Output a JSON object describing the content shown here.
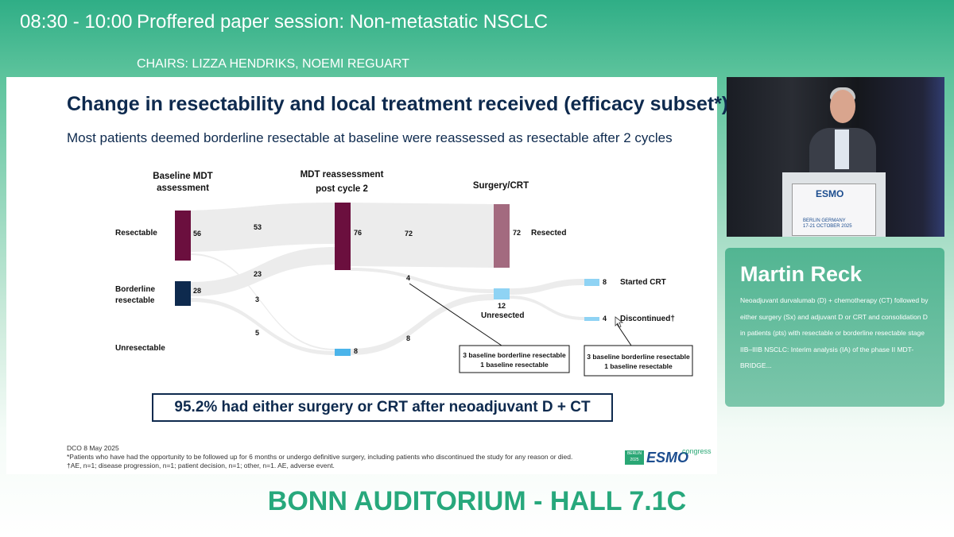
{
  "header": {
    "time": "08:30 - 10:00",
    "session": "Proffered paper session: Non-metastatic NSCLC",
    "chairs": "CHAIRS: LIZZA HENDRIKS, NOEMI REGUART"
  },
  "slide": {
    "title": "Change in resectability and local treatment received (efficacy subset*)",
    "subtitle": "Most patients deemed borderline resectable at baseline were reassessed as resectable after 2 cycles",
    "columns": {
      "baseline": [
        "Baseline MDT",
        "assessment"
      ],
      "reassessment": [
        "MDT reassessment",
        "post cycle 2"
      ],
      "surgery": "Surgery/CRT"
    },
    "row_labels": {
      "resectable": "Resectable",
      "borderline": [
        "Borderline",
        "resectable"
      ],
      "unresectable": "Unresectable"
    },
    "nodes": {
      "base_resectable": "56",
      "base_borderline": "28",
      "mdt_resectable": "76",
      "mdt_unresectable": "8",
      "unresected": "12",
      "resected": "72",
      "started_crt": "8",
      "discontinued": "4"
    },
    "outcome_labels": {
      "resected": "Resected",
      "unresected": "Unresected",
      "started_crt": "Started CRT",
      "discontinued": "Discontinued†"
    },
    "flows": {
      "r_to_r": "53",
      "b_to_r": "23",
      "r_to_u": "3",
      "b_to_u": "5",
      "to_resected": "72",
      "r_to_unres": "4",
      "u_to_unres": "8"
    },
    "boxes": {
      "box1": [
        "3 baseline borderline resectable",
        "1 baseline resectable"
      ],
      "box2": [
        "3 baseline borderline resectable",
        "1 baseline resectable"
      ]
    },
    "callout": "95.2% had either surgery or CRT after neoadjuvant D + CT",
    "footnotes": [
      "DCO 8 May 2025",
      "*Patients who have had the opportunity to be followed up for 6 months or undergo definitive surgery, including patients who discontinued the study for any reason or died.",
      "†AE, n=1; disease progression, n=1; patient decision, n=1; other, n=1. AE, adverse event."
    ],
    "logo": {
      "city": [
        "BERLIN",
        "2025"
      ],
      "word": "ESMO",
      "congress": "congress"
    }
  },
  "video": {
    "podium_logo": "ESMO",
    "podium_lines": [
      "BERLIN GERMANY",
      "17-21 OCTOBER 2025"
    ]
  },
  "speaker": {
    "name": "Martin Reck",
    "description": "Neoadjuvant durvalumab (D) + chemotherapy (CT) followed by either surgery (Sx) and adjuvant D or CRT and consolidation D in patients (pts) with resectable or borderline resectable stage IIB–IIIB NSCLC: Interim analysis (IA) of the phase II MDT-BRIDGE..."
  },
  "footer": {
    "location": "BONN AUDITORIUM - HALL 7.1C"
  },
  "colors": {
    "header_green": "#2fae86",
    "dark_maroon": "#6b0f3e",
    "navy": "#0e2a4e",
    "light_maroon": "#a36a7f",
    "light_blue": "#8fd3f4",
    "flow_grey": "#ececec",
    "hall_green": "#27a87c"
  }
}
